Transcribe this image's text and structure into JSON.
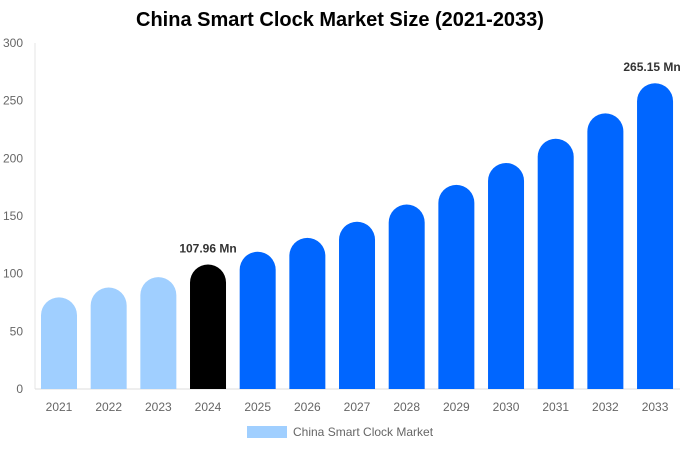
{
  "chart_data": {
    "type": "bar",
    "title": "China Smart Clock Market Size (2021-2033)",
    "categories": [
      "2021",
      "2022",
      "2023",
      "2024",
      "2025",
      "2026",
      "2027",
      "2028",
      "2029",
      "2030",
      "2031",
      "2032",
      "2033"
    ],
    "series": [
      {
        "name": "China Smart Clock Market",
        "values": [
          79.5,
          88,
          97,
          107.96,
          119,
          131,
          145,
          160,
          177,
          196,
          217,
          239,
          265.15
        ]
      }
    ],
    "data_labels": [
      {
        "category": "2024",
        "text": "107.96 Mn"
      },
      {
        "category": "2033",
        "text": "265.15 Mn"
      }
    ],
    "ylim": [
      0,
      300
    ],
    "yticks": [
      0,
      50,
      100,
      150,
      200,
      250,
      300
    ],
    "xlabel": "",
    "ylabel": "",
    "grid": false,
    "legend": "bottom",
    "colors": {
      "historical": "#a0cfff",
      "base_year": "#000000",
      "forecast": "#0066ff"
    }
  }
}
